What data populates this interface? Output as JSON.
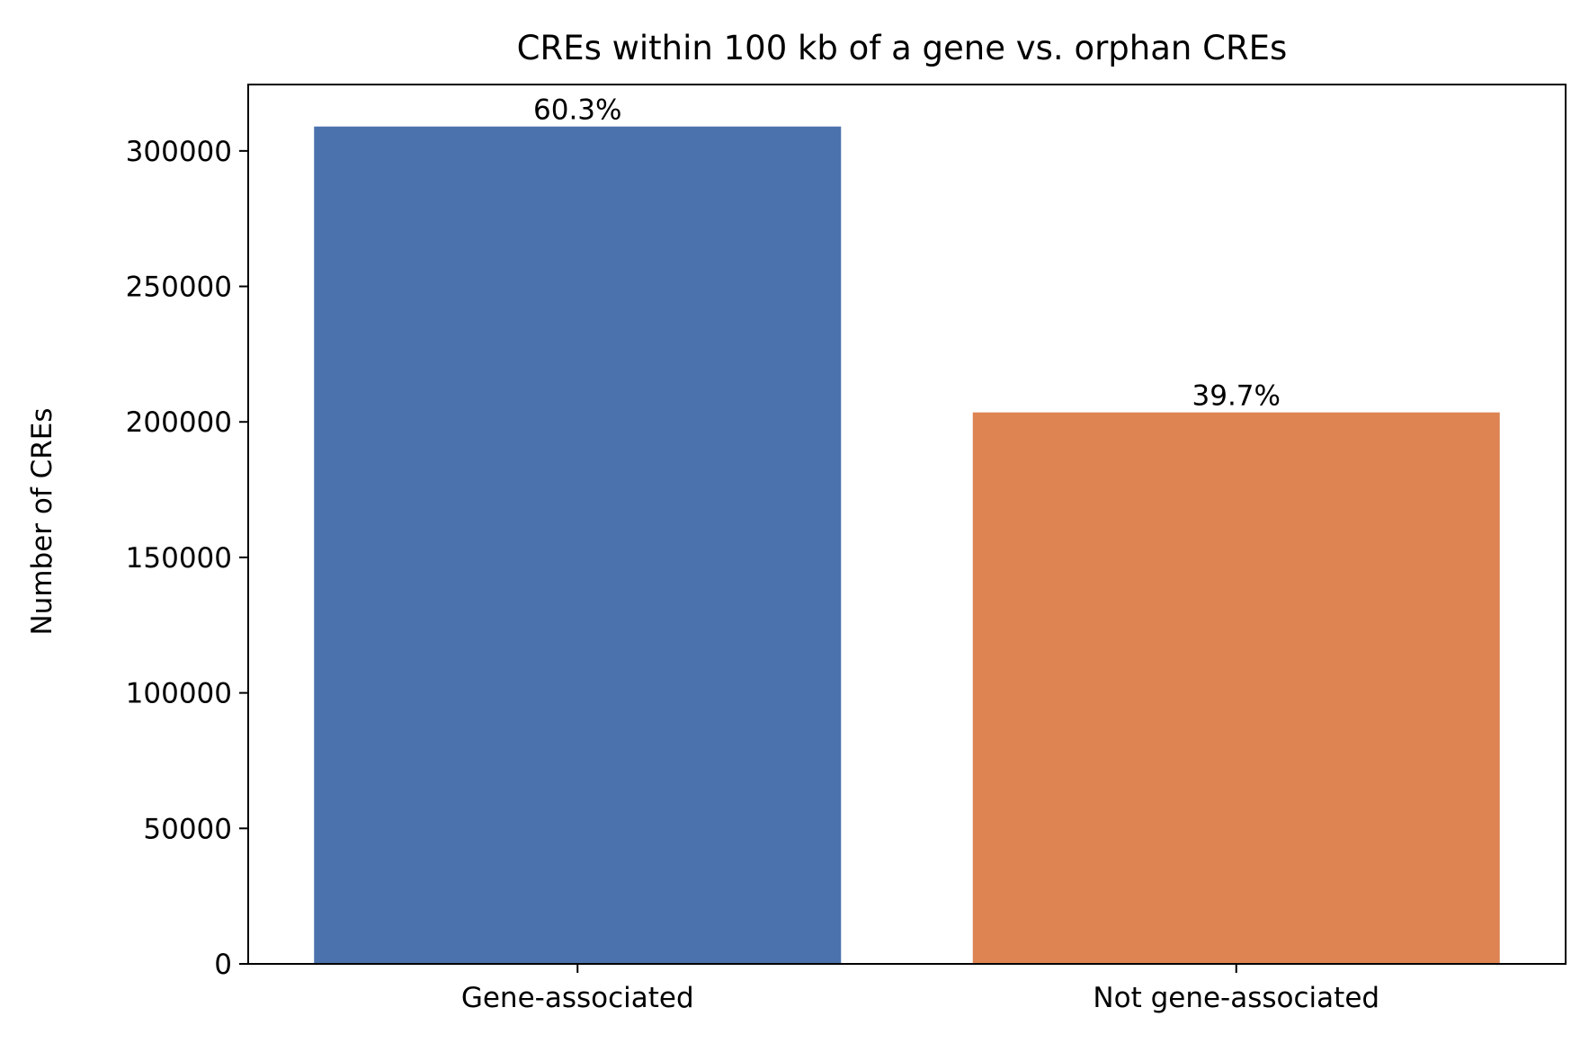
{
  "chart_data": {
    "type": "bar",
    "title": "CREs within 100 kb of a gene vs. orphan CREs",
    "xlabel": "",
    "ylabel": "Number of CREs",
    "categories": [
      "Gene-associated",
      "Not gene-associated"
    ],
    "values": [
      309000,
      203500
    ],
    "data_labels": [
      "60.3%",
      "39.7%"
    ],
    "colors": [
      "#4c72ae",
      "#dd8452"
    ],
    "ylim": [
      0,
      324500
    ],
    "yticks": [
      0,
      50000,
      100000,
      150000,
      200000,
      250000,
      300000
    ],
    "grid": false,
    "legend": "none"
  }
}
